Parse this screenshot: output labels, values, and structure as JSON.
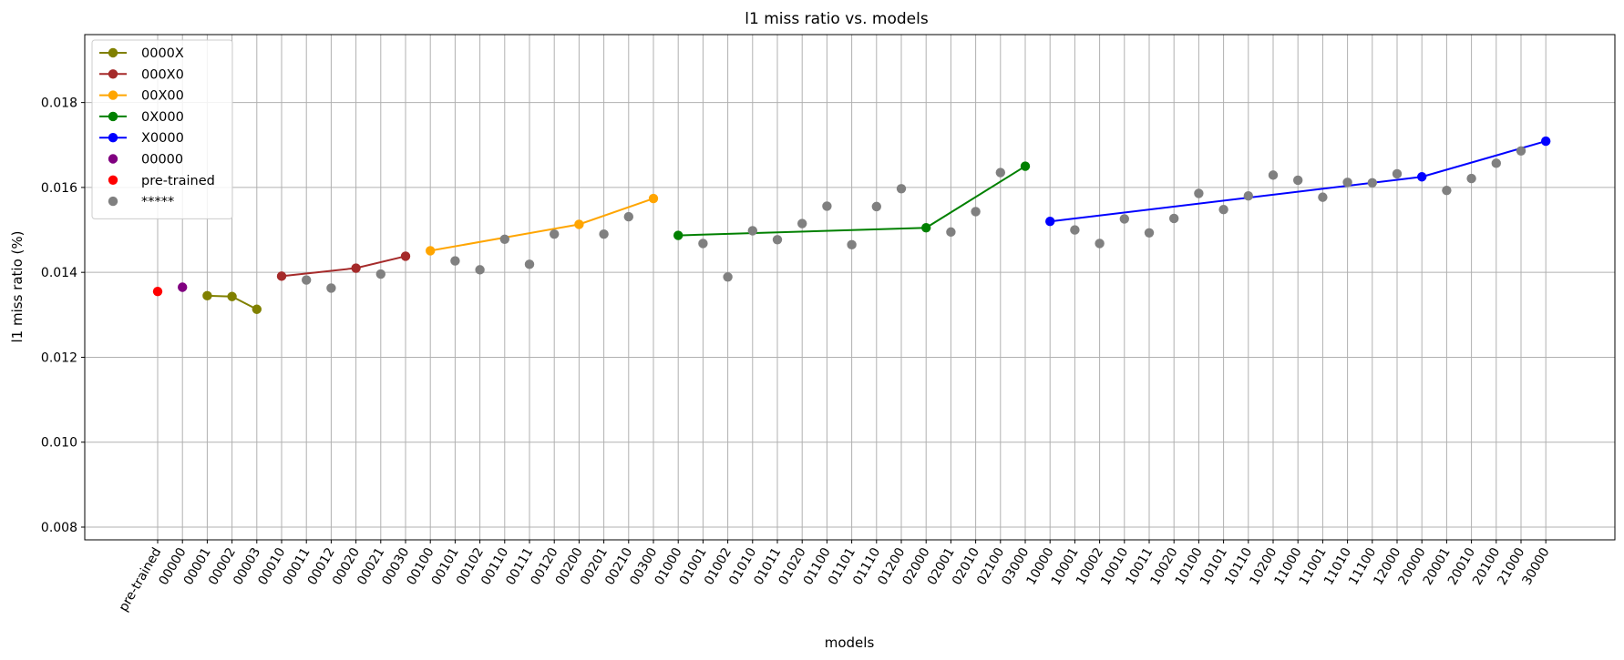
{
  "chart_data": {
    "type": "line",
    "title": "l1 miss ratio vs. models",
    "xlabel": "models",
    "ylabel": "l1 miss ratio (%)",
    "ylim": [
      0.0077,
      0.0196
    ],
    "yticks": [
      0.008,
      0.01,
      0.012,
      0.014,
      0.016,
      0.018
    ],
    "ytick_labels": [
      "0.008",
      "0.010",
      "0.012",
      "0.014",
      "0.016",
      "0.018"
    ],
    "grid": true,
    "legend_position": "upper-left",
    "categories": [
      "pre-trained",
      "00000",
      "00001",
      "00002",
      "00003",
      "00010",
      "00011",
      "00012",
      "00020",
      "00021",
      "00030",
      "00100",
      "00101",
      "00102",
      "00110",
      "00111",
      "00120",
      "00200",
      "00201",
      "00210",
      "00300",
      "01000",
      "01001",
      "01002",
      "01010",
      "01011",
      "01020",
      "01100",
      "01101",
      "01110",
      "01200",
      "02000",
      "02001",
      "02010",
      "02100",
      "03000",
      "10000",
      "10001",
      "10002",
      "10010",
      "10011",
      "10020",
      "10100",
      "10101",
      "10110",
      "10200",
      "11000",
      "11001",
      "11010",
      "11100",
      "12000",
      "20000",
      "20001",
      "20010",
      "20100",
      "21000",
      "30000"
    ],
    "series": [
      {
        "name": "0000X",
        "style": "line",
        "color": "#808000",
        "x": [
          "00001",
          "00002",
          "00003"
        ],
        "values": [
          0.01345,
          0.01343,
          0.01313
        ]
      },
      {
        "name": "000X0",
        "style": "line",
        "color": "#a52a2a",
        "x": [
          "00010",
          "00020",
          "00030"
        ],
        "values": [
          0.01391,
          0.0141,
          0.01438
        ]
      },
      {
        "name": "00X00",
        "style": "line",
        "color": "#ffa500",
        "x": [
          "00100",
          "00200",
          "00300"
        ],
        "values": [
          0.01451,
          0.01513,
          0.01574
        ]
      },
      {
        "name": "0X000",
        "style": "line",
        "color": "#008000",
        "x": [
          "01000",
          "02000",
          "03000"
        ],
        "values": [
          0.01487,
          0.01505,
          0.0165
        ]
      },
      {
        "name": "X0000",
        "style": "line",
        "color": "#0000ff",
        "x": [
          "10000",
          "20000",
          "30000"
        ],
        "values": [
          0.0152,
          0.01625,
          0.01709
        ]
      },
      {
        "name": "00000",
        "style": "scatter",
        "color": "#800080",
        "x": [
          "00000"
        ],
        "values": [
          0.01365
        ]
      },
      {
        "name": "pre-trained",
        "style": "scatter",
        "color": "#ff0000",
        "x": [
          "pre-trained"
        ],
        "values": [
          0.01355
        ]
      },
      {
        "name": "*****",
        "style": "scatter",
        "color": "#808080",
        "x": [
          "00011",
          "00012",
          "00021",
          "00101",
          "00102",
          "00110",
          "00111",
          "00120",
          "00201",
          "00210",
          "01001",
          "01002",
          "01010",
          "01011",
          "01020",
          "01100",
          "01101",
          "01110",
          "01200",
          "02001",
          "02010",
          "02100",
          "10001",
          "10002",
          "10010",
          "10011",
          "10020",
          "10100",
          "10101",
          "10110",
          "10200",
          "11000",
          "11001",
          "11010",
          "11100",
          "12000",
          "20001",
          "20010",
          "20100",
          "21000"
        ],
        "values": [
          0.01382,
          0.01363,
          0.01396,
          0.01427,
          0.01406,
          0.01478,
          0.01419,
          0.0149,
          0.0149,
          0.01531,
          0.01468,
          0.01389,
          0.01498,
          0.01477,
          0.01515,
          0.01556,
          0.01465,
          0.01555,
          0.01597,
          0.01495,
          0.01543,
          0.01635,
          0.015,
          0.01468,
          0.01526,
          0.01493,
          0.01527,
          0.01586,
          0.01548,
          0.0158,
          0.01629,
          0.01617,
          0.01577,
          0.01612,
          0.01611,
          0.01632,
          0.01593,
          0.01621,
          0.01657,
          0.01686
        ]
      }
    ]
  }
}
